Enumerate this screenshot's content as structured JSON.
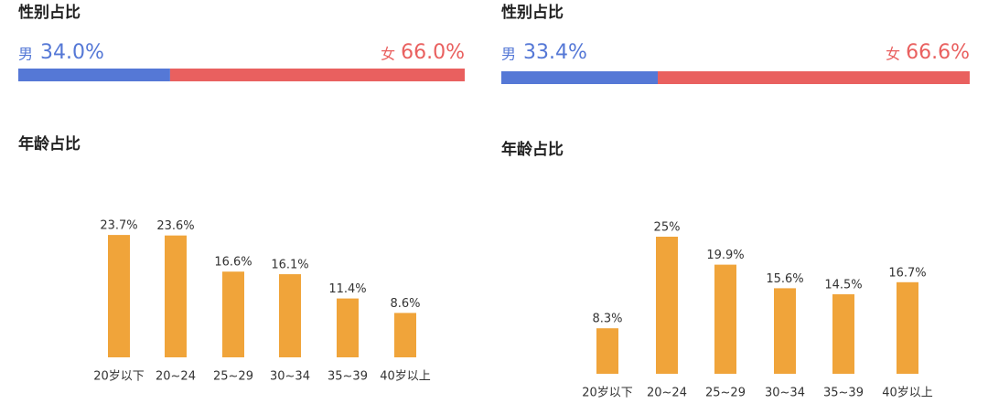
{
  "chart_data": [
    {
      "type": "share",
      "title": "性别占比",
      "series": [
        {
          "name": "男",
          "color": "#5578d6",
          "values": [
            34.0
          ],
          "value_labels": [
            "34.0%"
          ]
        },
        {
          "name": "女",
          "color": "#e9605f",
          "values": [
            66.0
          ],
          "value_labels": [
            "66.0%"
          ]
        }
      ]
    },
    {
      "type": "bar",
      "title": "年龄占比",
      "color": "#f0a43a",
      "categories": [
        "20岁以下",
        "20~24",
        "25~29",
        "30~34",
        "35~39",
        "40岁以上"
      ],
      "values": [
        23.7,
        23.6,
        16.6,
        16.1,
        11.4,
        8.6
      ],
      "value_labels": [
        "23.7%",
        "23.6%",
        "16.6%",
        "16.1%",
        "11.4%",
        "8.6%"
      ]
    },
    {
      "type": "share",
      "title": "性别占比",
      "series": [
        {
          "name": "男",
          "color": "#5578d6",
          "values": [
            33.4
          ],
          "value_labels": [
            "33.4%"
          ]
        },
        {
          "name": "女",
          "color": "#e9605f",
          "values": [
            66.6
          ],
          "value_labels": [
            "66.6%"
          ]
        }
      ]
    },
    {
      "type": "bar",
      "title": "年龄占比",
      "color": "#f0a43a",
      "categories": [
        "20岁以下",
        "20~24",
        "25~29",
        "30~34",
        "35~39",
        "40岁以上"
      ],
      "values": [
        8.3,
        25,
        19.9,
        15.6,
        14.5,
        16.7
      ],
      "value_labels": [
        "8.3%",
        "25%",
        "19.9%",
        "15.6%",
        "14.5%",
        "16.7%"
      ]
    }
  ]
}
